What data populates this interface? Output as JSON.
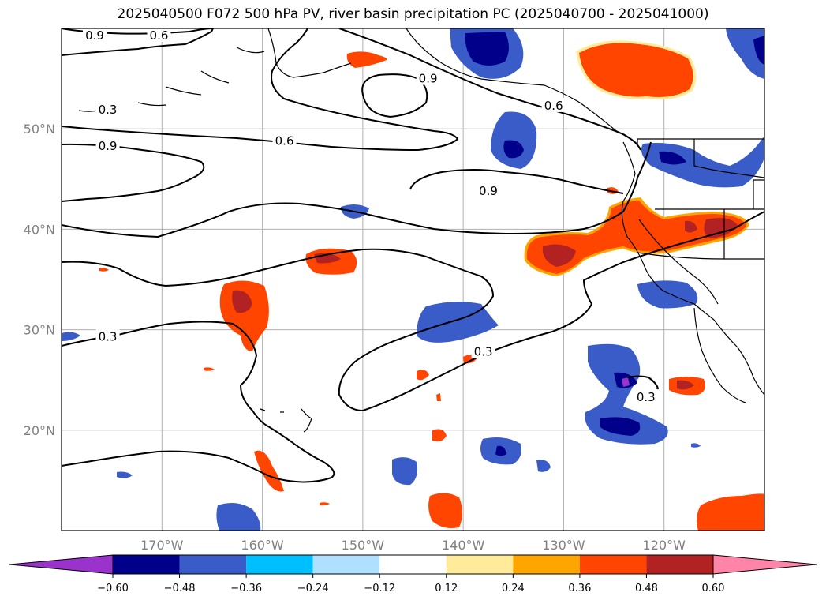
{
  "title": "2025040500 F072 500 hPa PV, river basin precipitation PC (2025040700 - 2025041000)",
  "map": {
    "projection": "PlateCarree",
    "lon_range": [
      -180,
      -110
    ],
    "lat_range": [
      10,
      60
    ],
    "lon_ticks": [
      {
        "lon": -170,
        "label": "170°W"
      },
      {
        "lon": -160,
        "label": "160°W"
      },
      {
        "lon": -150,
        "label": "150°W"
      },
      {
        "lon": -140,
        "label": "140°W"
      },
      {
        "lon": -130,
        "label": "130°W"
      },
      {
        "lon": -120,
        "label": "120°W"
      }
    ],
    "lat_ticks": [
      {
        "lat": 20,
        "label": "20°N"
      },
      {
        "lat": 30,
        "label": "30°N"
      },
      {
        "lat": 40,
        "label": "40°N"
      },
      {
        "lat": 50,
        "label": "50°N"
      }
    ],
    "gridlines": true,
    "contour_labels": [
      {
        "text": "0.9",
        "lon": -176.7,
        "lat": 59.3
      },
      {
        "text": "0.6",
        "lon": -170.3,
        "lat": 59.3
      },
      {
        "text": "0.3",
        "lon": -175.4,
        "lat": 51.9
      },
      {
        "text": "0.9",
        "lon": -143.5,
        "lat": 55.0
      },
      {
        "text": "0.6",
        "lon": -131.0,
        "lat": 52.3
      },
      {
        "text": "0.6",
        "lon": -157.8,
        "lat": 48.8
      },
      {
        "text": "0.9",
        "lon": -175.4,
        "lat": 48.3
      },
      {
        "text": "0.9",
        "lon": -137.5,
        "lat": 43.8
      },
      {
        "text": "0.3",
        "lon": -175.4,
        "lat": 29.3
      },
      {
        "text": "0.3",
        "lon": -138.0,
        "lat": 27.8
      },
      {
        "text": "0.3",
        "lon": -121.8,
        "lat": 23.3
      }
    ]
  },
  "colorbar": {
    "colors": [
      "#9933cc",
      "#00008b",
      "#3a5cc9",
      "#00bfff",
      "#b0e0ff",
      "#ffffff",
      "#ffeb99",
      "#ffa500",
      "#ff4500",
      "#b22222",
      "#ff85a8"
    ],
    "tick_labels": [
      "−0.60",
      "−0.48",
      "−0.36",
      "−0.24",
      "−0.12",
      "0.12",
      "0.24",
      "0.36",
      "0.48",
      "0.60"
    ]
  }
}
